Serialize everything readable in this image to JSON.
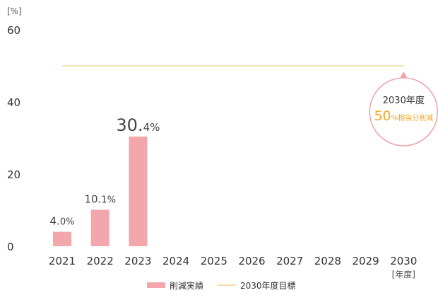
{
  "chart_data": {
    "type": "bar",
    "y_unit": "[%]",
    "x_unit": "[年度]",
    "yticks": [
      0,
      20,
      40,
      60
    ],
    "ylim": [
      0,
      60
    ],
    "categories": [
      "2021",
      "2022",
      "2023",
      "2024",
      "2025",
      "2026",
      "2027",
      "2028",
      "2029",
      "2030"
    ],
    "highlight_category": "2023",
    "series": [
      {
        "name": "削減実績",
        "type": "bar",
        "color": "#f4a6ad",
        "values": [
          4.0,
          10.1,
          30.4,
          null,
          null,
          null,
          null,
          null,
          null,
          null
        ],
        "labels": [
          {
            "num": "4.",
            "dec": "0",
            "unit": "%"
          },
          {
            "num": "10.",
            "dec": "1",
            "unit": "%"
          },
          {
            "num": "30.",
            "dec": "4",
            "unit": "%"
          }
        ]
      },
      {
        "name": "2030年度目標",
        "type": "line",
        "color": "#f7d08a",
        "value": 50,
        "x_start": "2021",
        "x_end": "2030"
      }
    ],
    "callout": {
      "line1": "2030年度",
      "big": "50",
      "small": "%相当分削減",
      "border_color": "#f2a0a8",
      "accent_color": "#f5a623"
    },
    "legend": {
      "position": "bottom-center"
    }
  }
}
